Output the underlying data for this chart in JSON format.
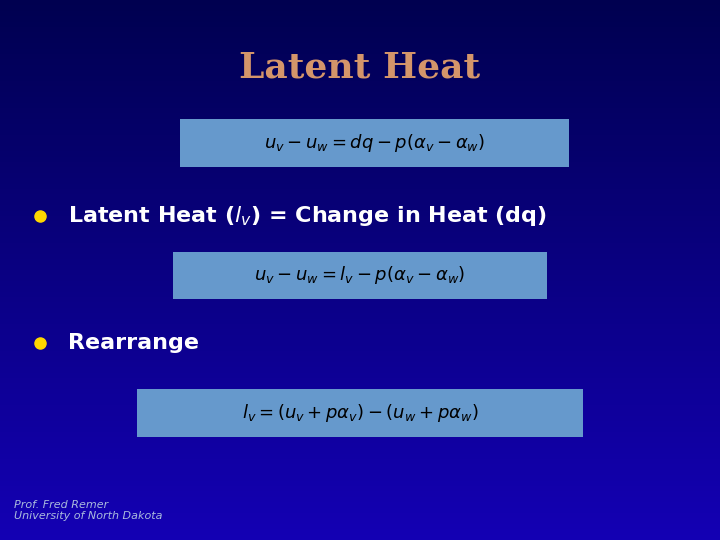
{
  "title": "Latent Heat",
  "title_color": "#D4956A",
  "title_fontsize": 26,
  "bg_color_top": "#000080",
  "bg_color_bottom": "#0000CC",
  "bg_color": "#0000CC",
  "bullet_color": "#FFD700",
  "bullet_text_color": "#FFFFFF",
  "eq_box_color": "#6699CC",
  "eq1": "$u_v - u_w = dq - p(\\alpha_v - \\alpha_w)$",
  "eq2": "$u_v - u_w = l_v - p(\\alpha_v - \\alpha_w)$",
  "eq3": "$l_v = (u_v + p\\alpha_v) - (u_w + p\\alpha_w)$",
  "footer_text": "Prof. Fred Remer\nUniversity of North Dakota",
  "footer_color": "#AABBDD",
  "footer_fontsize": 8,
  "eq_fontsize": 13,
  "bullet_fontsize": 16
}
